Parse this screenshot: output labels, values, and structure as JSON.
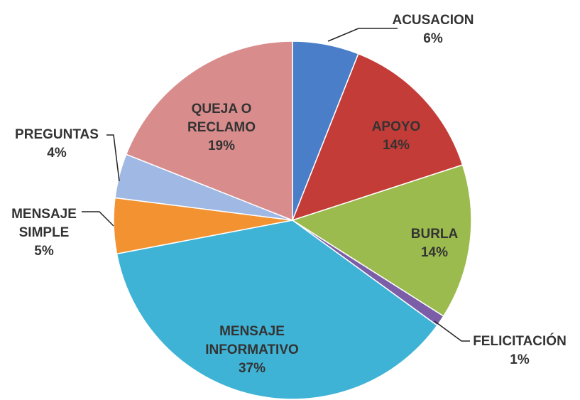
{
  "chart_data": {
    "type": "pie",
    "categories": [
      "ACUSACION",
      "APOYO",
      "BURLA",
      "FELICITACIÓN",
      "MENSAJE INFORMATIVO",
      "MENSAJE SIMPLE",
      "PREGUNTAS",
      "QUEJA O RECLAMO"
    ],
    "values": [
      6,
      14,
      14,
      1,
      37,
      5,
      4,
      19
    ],
    "value_labels": [
      "6%",
      "14%",
      "14%",
      "1%",
      "37%",
      "5%",
      "4%",
      "19%"
    ],
    "colors": [
      "#4a7ec8",
      "#c43c37",
      "#9bbb4f",
      "#7b5ea7",
      "#3fb3d6",
      "#f39230",
      "#9fb8e4",
      "#d98c8c"
    ]
  }
}
